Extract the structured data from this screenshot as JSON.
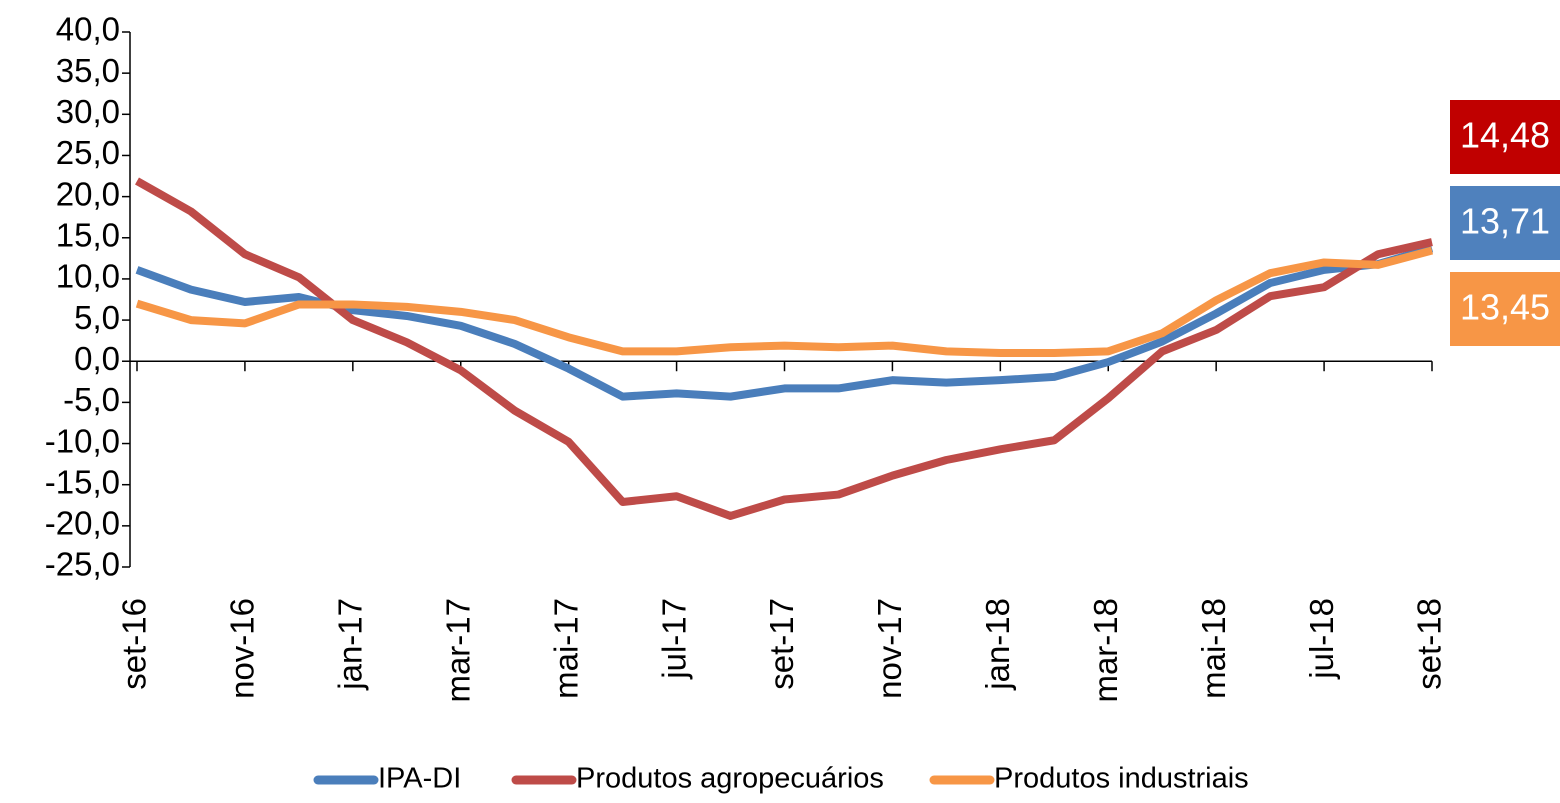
{
  "chart_data": {
    "type": "line",
    "categories": [
      "set-16",
      null,
      "nov-16",
      null,
      "jan-17",
      null,
      "mar-17",
      null,
      "mai-17",
      null,
      "jul-17",
      null,
      "set-17",
      null,
      "nov-17",
      null,
      "jan-18",
      null,
      "mar-18",
      null,
      "mai-18",
      null,
      "jul-18",
      null,
      "set-18"
    ],
    "series": [
      {
        "name": "IPA-DI",
        "color": "#4a7ebb",
        "badge_color": "#4f81bd",
        "values": [
          11.1,
          8.7,
          7.2,
          7.8,
          6.2,
          5.5,
          4.3,
          2.1,
          -0.9,
          -4.3,
          -3.9,
          -4.3,
          -3.3,
          -3.3,
          -2.3,
          -2.6,
          -2.3,
          -1.9,
          -0.1,
          2.4,
          5.8,
          9.5,
          11.1,
          11.8,
          13.71
        ],
        "value_labels": [
          null,
          null,
          null,
          null,
          null,
          null,
          null,
          null,
          null,
          null,
          null,
          null,
          null,
          null,
          null,
          null,
          null,
          null,
          null,
          null,
          null,
          null,
          null,
          null,
          "13,71"
        ]
      },
      {
        "name": "Produtos agropecuários",
        "color": "#be4b48",
        "badge_color": "#c00000",
        "values": [
          21.9,
          18.2,
          13.0,
          10.2,
          5.0,
          2.3,
          -1.1,
          -6.0,
          -9.8,
          -17.1,
          -16.4,
          -18.8,
          -16.8,
          -16.2,
          -13.9,
          -12.0,
          -10.7,
          -9.6,
          -4.5,
          1.2,
          3.8,
          7.9,
          9.0,
          13.0,
          14.48
        ],
        "value_labels": [
          null,
          null,
          null,
          null,
          null,
          null,
          null,
          null,
          null,
          null,
          null,
          null,
          null,
          null,
          null,
          null,
          null,
          null,
          null,
          null,
          null,
          null,
          null,
          null,
          "14,48"
        ]
      },
      {
        "name": "Produtos industriais",
        "color": "#f79646",
        "badge_color": "#f79646",
        "values": [
          7.0,
          5.0,
          4.6,
          6.9,
          6.9,
          6.6,
          6.0,
          5.0,
          2.9,
          1.2,
          1.2,
          1.7,
          1.9,
          1.7,
          1.9,
          1.2,
          1.0,
          1.0,
          1.2,
          3.4,
          7.4,
          10.7,
          12.0,
          11.7,
          13.45
        ],
        "value_labels": [
          null,
          null,
          null,
          null,
          null,
          null,
          null,
          null,
          null,
          null,
          null,
          null,
          null,
          null,
          null,
          null,
          null,
          null,
          null,
          null,
          null,
          null,
          null,
          null,
          "13,45"
        ]
      }
    ],
    "ylim": [
      -25,
      40
    ],
    "yticks": [
      {
        "value": 40,
        "label": "40,0"
      },
      {
        "value": 35,
        "label": "35,0"
      },
      {
        "value": 30,
        "label": "30,0"
      },
      {
        "value": 25,
        "label": "25,0"
      },
      {
        "value": 20,
        "label": "20,0"
      },
      {
        "value": 15,
        "label": "15,0"
      },
      {
        "value": 10,
        "label": "10,0"
      },
      {
        "value": 5,
        "label": "5,0"
      },
      {
        "value": 0,
        "label": "0,0"
      },
      {
        "value": -5,
        "label": "-5,0"
      },
      {
        "value": -10,
        "label": "-10,0"
      },
      {
        "value": -15,
        "label": "-15,0"
      },
      {
        "value": -20,
        "label": "-20,0"
      },
      {
        "value": -25,
        "label": "-25,0"
      }
    ],
    "grid": false,
    "legend": "bottom"
  }
}
